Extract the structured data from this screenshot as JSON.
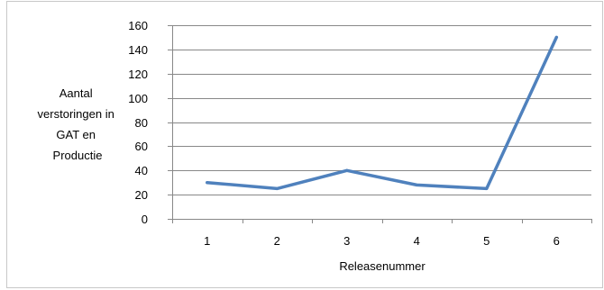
{
  "chart_data": {
    "type": "line",
    "categories": [
      "1",
      "2",
      "3",
      "4",
      "5",
      "6"
    ],
    "series": [
      {
        "values": [
          30,
          25,
          40,
          28,
          25,
          150
        ]
      }
    ],
    "xlabel": "Releasenummer",
    "ylabel_lines": [
      "Aantal",
      "verstoringen in",
      "GAT en",
      "Productie"
    ],
    "ylim": [
      0,
      160
    ],
    "yticks": [
      0,
      20,
      40,
      60,
      80,
      100,
      120,
      140,
      160
    ],
    "grid": true,
    "legend": "none",
    "line_color": "#4f81bd"
  }
}
